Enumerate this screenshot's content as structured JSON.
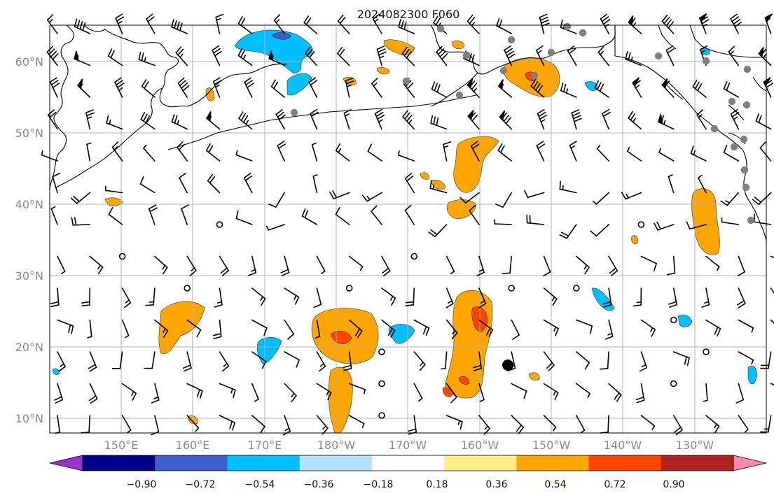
{
  "title": "2024082300 F060",
  "lat_labels": [
    "60°N",
    "50°N",
    "40°N",
    "30°N",
    "20°N",
    "10°N"
  ],
  "lon_labels": [
    "150°E",
    "160°E",
    "170°E",
    "180°W",
    "170°W",
    "160°W",
    "150°W",
    "140°W",
    "130°W"
  ],
  "colorbar": {
    "ticks": [
      "−0.90",
      "−0.72",
      "−0.54",
      "−0.36",
      "−0.18",
      "0.18",
      "0.36",
      "0.54",
      "0.72",
      "0.90"
    ],
    "colors": [
      "#9932cc",
      "#00008b",
      "#3a5fcd",
      "#00bfff",
      "#b0e2ff",
      "#ffffff",
      "#ffec8b",
      "#ffa500",
      "#ff4500",
      "#b22222",
      "#ff88aa"
    ]
  },
  "colors": {
    "land_outline": "#000000",
    "grid": "#b0b0b0",
    "station_gray": "#808080",
    "barb": "#000000"
  }
}
